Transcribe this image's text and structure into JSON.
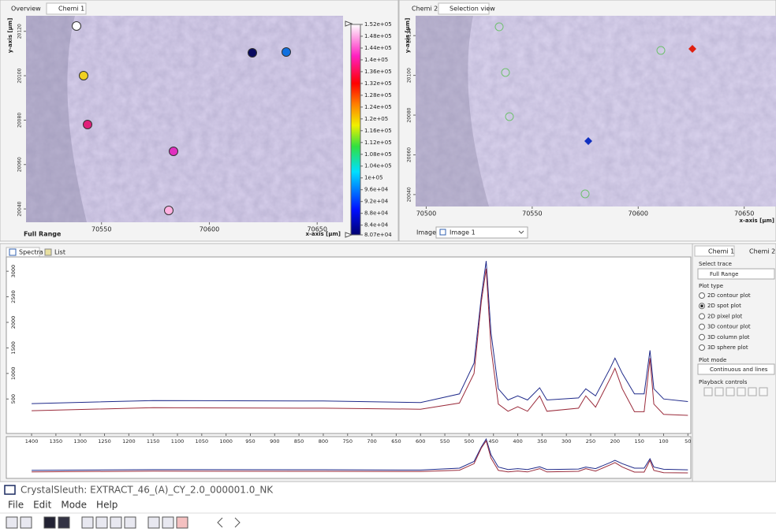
{
  "top_left": {
    "tabs": [
      "Overview",
      "Chemi 1"
    ],
    "y_axis_label": "y-axis [µm]",
    "x_axis_label": "x-axis [µm]",
    "xlim": [
      70515,
      70662
    ],
    "xticks": [
      70550,
      70600,
      70650
    ],
    "ylim": [
      20034,
      20127
    ],
    "yticks": [
      20120,
      20100,
      20080,
      20060,
      20040
    ],
    "trace_label": "Full Range",
    "colorbar_lim": [
      80700,
      152000
    ],
    "colorbar_ticks": [
      {
        "value": 152000,
        "label": "1.52e+05"
      },
      {
        "value": 148000,
        "label": "1.48e+05"
      },
      {
        "value": 144000,
        "label": "1.44e+05"
      },
      {
        "value": 140000,
        "label": "1.4e+05"
      },
      {
        "value": 136000,
        "label": "1.36e+05"
      },
      {
        "value": 132000,
        "label": "1.32e+05"
      },
      {
        "value": 128000,
        "label": "1.28e+05"
      },
      {
        "value": 124000,
        "label": "1.24e+05"
      },
      {
        "value": 120000,
        "label": "1.2e+05"
      },
      {
        "value": 116000,
        "label": "1.16e+05"
      },
      {
        "value": 112000,
        "label": "1.12e+05"
      },
      {
        "value": 108000,
        "label": "1.08e+05"
      },
      {
        "value": 104000,
        "label": "1.04e+05"
      },
      {
        "value": 100000,
        "label": "1e+05"
      },
      {
        "value": 96000,
        "label": "9.6e+04"
      },
      {
        "value": 92000,
        "label": "9.2e+04"
      },
      {
        "value": 88000,
        "label": "8.8e+04"
      },
      {
        "value": 84000,
        "label": "8.4e+04"
      },
      {
        "value": 80700,
        "label": "8.07e+04"
      }
    ]
  },
  "top_right": {
    "tabs": [
      "Chemi 2",
      "Selection view"
    ],
    "y_axis_label": "y-axis [µm]",
    "x_axis_label": "x-axis [µm]",
    "xlim": [
      70495,
      70665
    ],
    "xticks": [
      70500,
      70550,
      70600,
      70650
    ],
    "ylim": [
      20034,
      20130
    ],
    "yticks": [
      20120,
      20100,
      20080,
      20060,
      20040
    ],
    "image_label": "Image:",
    "image_select": "Image 1"
  },
  "spectra_tabs": [
    "Spectra",
    "List"
  ],
  "chart_data": {
    "type": "line",
    "x": [
      1400,
      1150,
      800,
      600,
      520,
      490,
      475,
      465,
      455,
      440,
      420,
      400,
      380,
      355,
      340,
      275,
      260,
      240,
      210,
      200,
      185,
      160,
      140,
      128,
      120,
      100,
      50
    ],
    "series": [
      {
        "color": "#1f2a8a",
        "values": [
          410,
          470,
          460,
          430,
          600,
          1200,
          2500,
          3200,
          1800,
          700,
          480,
          560,
          480,
          720,
          480,
          520,
          700,
          560,
          1100,
          1300,
          1000,
          600,
          600,
          1450,
          700,
          500,
          450
        ]
      },
      {
        "color": "#9a2a3a",
        "values": [
          270,
          330,
          320,
          300,
          420,
          1000,
          2400,
          3050,
          1500,
          400,
          260,
          350,
          260,
          560,
          260,
          320,
          560,
          340,
          900,
          1100,
          700,
          250,
          250,
          1300,
          400,
          200,
          180
        ]
      }
    ],
    "xlim": [
      1452,
      44
    ],
    "xticks": [
      1400,
      1350,
      1300,
      1250,
      1200,
      1150,
      1100,
      1050,
      1000,
      950,
      900,
      850,
      800,
      750,
      700,
      650,
      600,
      550,
      500,
      450,
      400,
      350,
      300,
      250,
      200,
      150,
      100,
      50
    ],
    "ylim": [
      -175,
      3280
    ],
    "yticks": [
      500,
      1000,
      1500,
      2000,
      2500,
      3000
    ]
  },
  "side_panel": {
    "tabs": [
      "Chemi 1",
      "Chemi 2"
    ],
    "select_trace_label": "Select trace",
    "trace": "Full Range",
    "plot_type_label": "Plot type",
    "plot_types": [
      {
        "label": "2D contour plot",
        "checked": false
      },
      {
        "label": "2D spot plot",
        "checked": true
      },
      {
        "label": "2D pixel plot",
        "checked": false
      },
      {
        "label": "3D contour plot",
        "checked": false
      },
      {
        "label": "3D column plot",
        "checked": false
      },
      {
        "label": "3D sphere plot",
        "checked": false
      }
    ],
    "plot_mode_label": "Plot mode",
    "plot_mode": "Continuous and lines",
    "playback_label": "Playback controls"
  },
  "window": {
    "title": "CrystalSleuth: EXTRACT_46_(A)_CY_2.0_000001.0_NK",
    "menu": [
      "File",
      "Edit",
      "Mode",
      "Help"
    ]
  }
}
